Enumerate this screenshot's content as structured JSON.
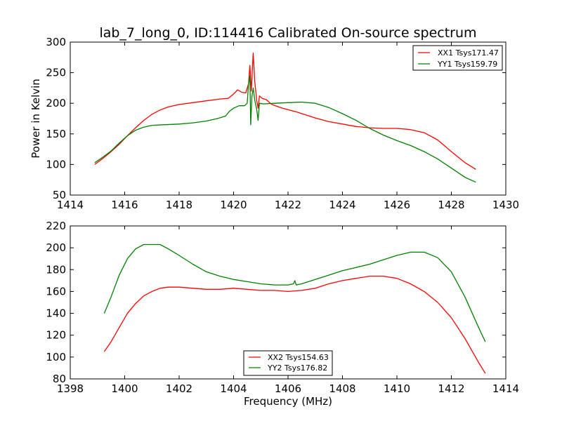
{
  "chart_data": [
    {
      "type": "line",
      "title": "lab_7_long_0, ID:114416 Calibrated On-source spectrum",
      "xlabel": "",
      "ylabel": "Power in Kelvin",
      "xlim": [
        1414,
        1430
      ],
      "ylim": [
        50,
        300
      ],
      "xticks": [
        1414,
        1416,
        1418,
        1420,
        1422,
        1424,
        1426,
        1428,
        1430
      ],
      "yticks": [
        50,
        100,
        150,
        200,
        250,
        300
      ],
      "grid": false,
      "legend_position": "upper right",
      "series": [
        {
          "name": "XX1 Tsys171.47",
          "color": "#ff0000",
          "points": [
            [
              1414.9,
              100
            ],
            [
              1415.2,
              110
            ],
            [
              1415.5,
              121
            ],
            [
              1415.8,
              133
            ],
            [
              1416.1,
              147
            ],
            [
              1416.4,
              160
            ],
            [
              1416.7,
              172
            ],
            [
              1417.0,
              182
            ],
            [
              1417.3,
              189
            ],
            [
              1417.6,
              194
            ],
            [
              1418.0,
              198
            ],
            [
              1418.5,
              201
            ],
            [
              1419.0,
              204
            ],
            [
              1419.5,
              207
            ],
            [
              1419.8,
              208
            ],
            [
              1420.0,
              215
            ],
            [
              1420.15,
              222
            ],
            [
              1420.3,
              218
            ],
            [
              1420.45,
              217
            ],
            [
              1420.55,
              232
            ],
            [
              1420.6,
              262
            ],
            [
              1420.65,
              220
            ],
            [
              1420.72,
              282
            ],
            [
              1420.78,
              235
            ],
            [
              1420.85,
              205
            ],
            [
              1420.9,
              192
            ],
            [
              1420.95,
              212
            ],
            [
              1421.05,
              208
            ],
            [
              1421.2,
              206
            ],
            [
              1421.4,
              198
            ],
            [
              1421.8,
              192
            ],
            [
              1422.3,
              186
            ],
            [
              1423.0,
              176
            ],
            [
              1423.5,
              170
            ],
            [
              1424.0,
              166
            ],
            [
              1424.5,
              162
            ],
            [
              1425.0,
              160
            ],
            [
              1425.5,
              159
            ],
            [
              1426.0,
              159
            ],
            [
              1426.5,
              157
            ],
            [
              1427.0,
              152
            ],
            [
              1427.5,
              140
            ],
            [
              1428.0,
              121
            ],
            [
              1428.5,
              103
            ],
            [
              1428.9,
              92
            ]
          ]
        },
        {
          "name": "YY1 Tsys159.79",
          "color": "#008000",
          "points": [
            [
              1414.9,
              103
            ],
            [
              1415.2,
              112
            ],
            [
              1415.5,
              122
            ],
            [
              1415.8,
              135
            ],
            [
              1416.1,
              147
            ],
            [
              1416.4,
              156
            ],
            [
              1416.7,
              161
            ],
            [
              1417.0,
              164
            ],
            [
              1417.5,
              165
            ],
            [
              1418.0,
              166
            ],
            [
              1418.5,
              168
            ],
            [
              1419.0,
              171
            ],
            [
              1419.4,
              175
            ],
            [
              1419.7,
              179
            ],
            [
              1419.85,
              187
            ],
            [
              1420.0,
              192
            ],
            [
              1420.2,
              196
            ],
            [
              1420.4,
              196
            ],
            [
              1420.5,
              200
            ],
            [
              1420.55,
              232
            ],
            [
              1420.6,
              245
            ],
            [
              1420.63,
              165
            ],
            [
              1420.67,
              210
            ],
            [
              1420.72,
              225
            ],
            [
              1420.78,
              205
            ],
            [
              1420.85,
              190
            ],
            [
              1420.9,
              172
            ],
            [
              1420.95,
              200
            ],
            [
              1421.1,
              199
            ],
            [
              1421.5,
              200
            ],
            [
              1422.0,
              201
            ],
            [
              1422.5,
              202
            ],
            [
              1423.0,
              200
            ],
            [
              1423.5,
              193
            ],
            [
              1424.0,
              183
            ],
            [
              1424.5,
              172
            ],
            [
              1425.0,
              159
            ],
            [
              1425.5,
              148
            ],
            [
              1426.0,
              139
            ],
            [
              1426.5,
              131
            ],
            [
              1427.0,
              121
            ],
            [
              1427.5,
              109
            ],
            [
              1428.0,
              94
            ],
            [
              1428.5,
              79
            ],
            [
              1428.9,
              71
            ]
          ]
        }
      ]
    },
    {
      "type": "line",
      "title": "",
      "xlabel": "Frequency (MHz)",
      "ylabel": "",
      "xlim": [
        1398,
        1414
      ],
      "ylim": [
        80,
        220
      ],
      "xticks": [
        1398,
        1400,
        1402,
        1404,
        1406,
        1408,
        1410,
        1412,
        1414
      ],
      "yticks": [
        80,
        100,
        120,
        140,
        160,
        180,
        200,
        220
      ],
      "grid": false,
      "legend_position": "lower center",
      "series": [
        {
          "name": "XX2 Tsys154.63",
          "color": "#ff0000",
          "points": [
            [
              1399.25,
              105
            ],
            [
              1399.5,
              114
            ],
            [
              1399.8,
              127
            ],
            [
              1400.1,
              140
            ],
            [
              1400.4,
              149
            ],
            [
              1400.7,
              156
            ],
            [
              1401.0,
              160
            ],
            [
              1401.3,
              163
            ],
            [
              1401.6,
              164
            ],
            [
              1402.0,
              164
            ],
            [
              1402.5,
              163
            ],
            [
              1403.0,
              162
            ],
            [
              1403.5,
              162
            ],
            [
              1404.0,
              163
            ],
            [
              1404.5,
              162
            ],
            [
              1405.0,
              161
            ],
            [
              1405.5,
              161
            ],
            [
              1406.0,
              160
            ],
            [
              1406.5,
              161
            ],
            [
              1407.0,
              163
            ],
            [
              1407.5,
              167
            ],
            [
              1408.0,
              170
            ],
            [
              1408.5,
              172
            ],
            [
              1409.0,
              174
            ],
            [
              1409.5,
              174
            ],
            [
              1410.0,
              172
            ],
            [
              1410.5,
              167
            ],
            [
              1411.0,
              160
            ],
            [
              1411.5,
              150
            ],
            [
              1412.0,
              136
            ],
            [
              1412.5,
              117
            ],
            [
              1413.0,
              95
            ],
            [
              1413.25,
              85
            ]
          ]
        },
        {
          "name": "YY2 Tsys176.82",
          "color": "#008000",
          "points": [
            [
              1399.25,
              140
            ],
            [
              1399.5,
              155
            ],
            [
              1399.8,
              175
            ],
            [
              1400.1,
              190
            ],
            [
              1400.4,
              199
            ],
            [
              1400.7,
              203
            ],
            [
              1401.0,
              203
            ],
            [
              1401.3,
              203
            ],
            [
              1401.6,
              199
            ],
            [
              1402.0,
              193
            ],
            [
              1402.5,
              185
            ],
            [
              1403.0,
              178
            ],
            [
              1403.5,
              174
            ],
            [
              1404.0,
              171
            ],
            [
              1404.5,
              169
            ],
            [
              1405.0,
              167
            ],
            [
              1405.5,
              166
            ],
            [
              1406.0,
              166
            ],
            [
              1406.2,
              167
            ],
            [
              1406.25,
              170
            ],
            [
              1406.3,
              166
            ],
            [
              1406.5,
              167
            ],
            [
              1407.0,
              171
            ],
            [
              1407.5,
              175
            ],
            [
              1408.0,
              179
            ],
            [
              1408.5,
              182
            ],
            [
              1409.0,
              185
            ],
            [
              1409.5,
              189
            ],
            [
              1410.0,
              193
            ],
            [
              1410.5,
              196
            ],
            [
              1411.0,
              196
            ],
            [
              1411.5,
              191
            ],
            [
              1412.0,
              178
            ],
            [
              1412.5,
              155
            ],
            [
              1413.0,
              127
            ],
            [
              1413.25,
              114
            ]
          ]
        }
      ]
    }
  ]
}
